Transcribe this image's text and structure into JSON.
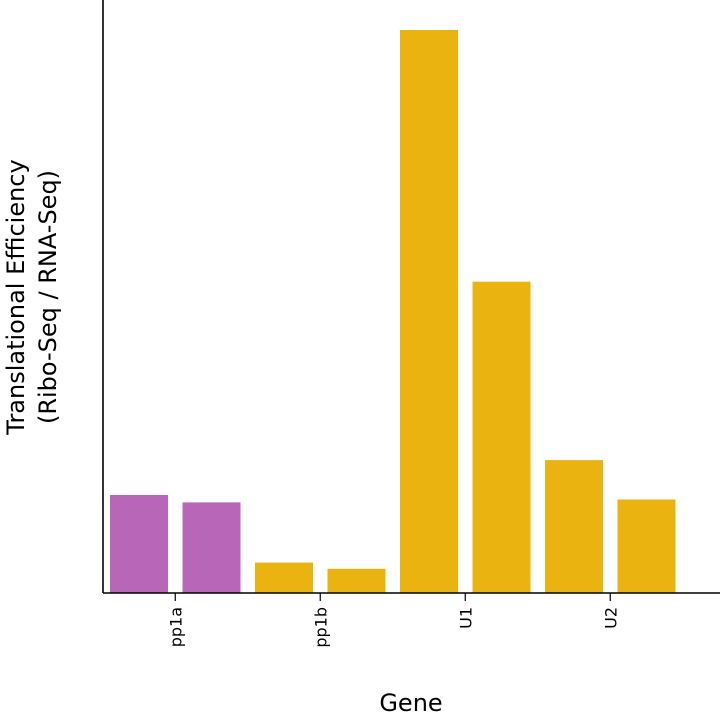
{
  "chart_data": {
    "type": "bar",
    "title": "",
    "xlabel": "Gene",
    "ylabel_line1": "Translational Efficiency",
    "ylabel_line2": "(Ribo-Seq / RNA-Seq)",
    "categories": [
      "pp1a",
      "pp1b",
      "U1",
      "U2"
    ],
    "ylim": [
      0,
      1.0
    ],
    "y_ticks_shown": false,
    "bars": [
      {
        "category": "pp1a",
        "value": 0.174,
        "color": "#b866b8"
      },
      {
        "category": "pp1a",
        "value": 0.161,
        "color": "#b866b8"
      },
      {
        "category": "pp1b",
        "value": 0.054,
        "color": "#ebb30f"
      },
      {
        "category": "pp1b",
        "value": 0.043,
        "color": "#ebb30f"
      },
      {
        "category": "U1",
        "value": 1.0,
        "color": "#ebb30f"
      },
      {
        "category": "U1",
        "value": 0.553,
        "color": "#ebb30f"
      },
      {
        "category": "U2",
        "value": 0.236,
        "color": "#ebb30f"
      },
      {
        "category": "U2",
        "value": 0.166,
        "color": "#ebb30f"
      }
    ]
  }
}
